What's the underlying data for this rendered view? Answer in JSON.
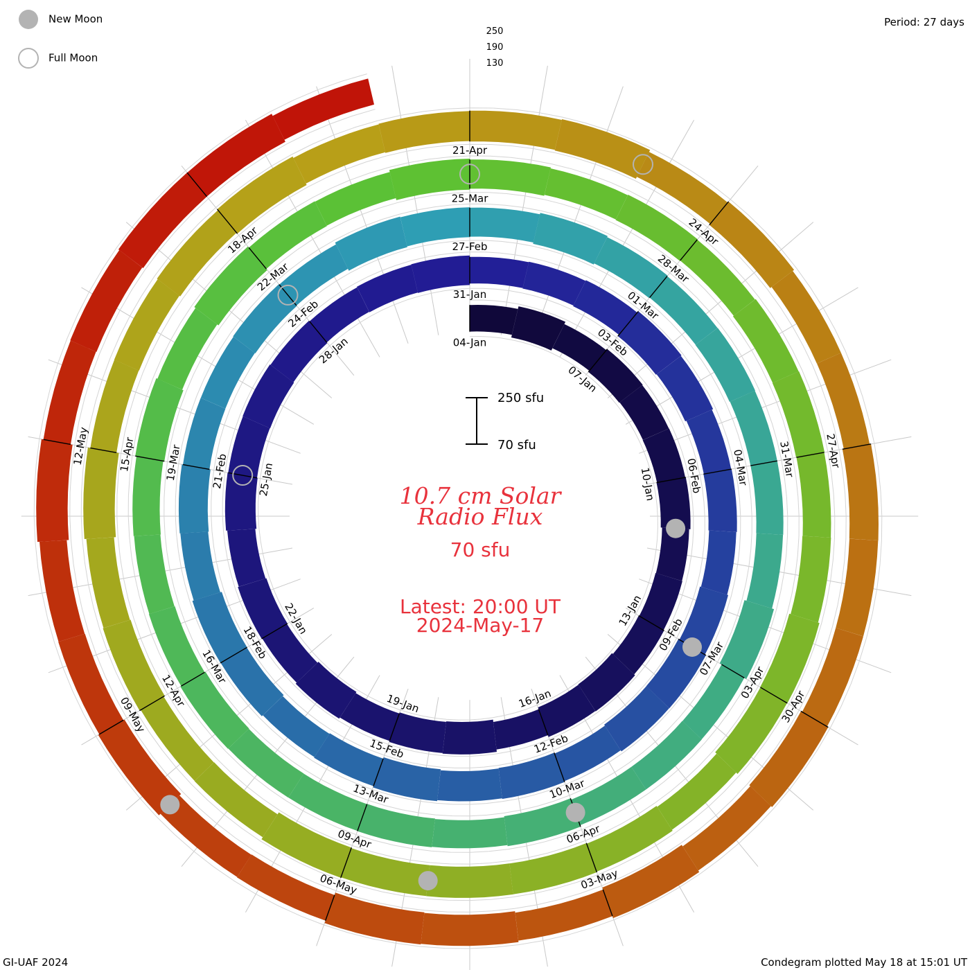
{
  "legend": {
    "new_moon_label": "New Moon",
    "full_moon_label": "Full Moon",
    "new_moon_color": "#b3b3b3",
    "full_moon_stroke": "#b3b3b3"
  },
  "header": {
    "period": "Period: 27 days",
    "scale_ticks": [
      "250",
      "190",
      "130"
    ]
  },
  "center": {
    "title_line1": "10.7 cm Solar",
    "title_line2": "Radio Flux",
    "current_value": "70 sfu",
    "latest_line1": "Latest: 20:00 UT",
    "latest_line2": "2024-May-17",
    "scale_top": "250 sfu",
    "scale_bottom": "70 sfu"
  },
  "footer": {
    "left": "GI-UAF 2024",
    "right": "Condegram plotted May 18 at 15:01 UT"
  },
  "chart_data": {
    "type": "condegram",
    "period_days": 27,
    "rotation_colors": [
      "#10083a",
      "#221c96",
      "#2e9eb4",
      "#5cc234",
      "#b8a018",
      "#c01408"
    ],
    "rotations": [
      {
        "labels": [
          {
            "text": "04-Jan",
            "angle": 0
          },
          {
            "text": "07-Jan",
            "angle": 40
          },
          {
            "text": "10-Jan",
            "angle": 80
          },
          {
            "text": "13-Jan",
            "angle": 120
          },
          {
            "text": "16-Jan",
            "angle": 160
          },
          {
            "text": "19-Jan",
            "angle": 200
          },
          {
            "text": "22-Jan",
            "angle": 240
          },
          {
            "text": "25-Jan",
            "angle": 280
          },
          {
            "text": "28-Jan",
            "angle": 320
          }
        ]
      },
      {
        "labels": [
          {
            "text": "31-Jan",
            "angle": 0
          },
          {
            "text": "03-Feb",
            "angle": 40
          },
          {
            "text": "06-Feb",
            "angle": 80
          },
          {
            "text": "09-Feb",
            "angle": 120
          },
          {
            "text": "12-Feb",
            "angle": 160
          },
          {
            "text": "15-Feb",
            "angle": 200
          },
          {
            "text": "18-Feb",
            "angle": 240
          },
          {
            "text": "21-Feb",
            "angle": 280
          },
          {
            "text": "24-Feb",
            "angle": 320
          }
        ]
      },
      {
        "labels": [
          {
            "text": "27-Feb",
            "angle": 0
          },
          {
            "text": "01-Mar",
            "angle": 40
          },
          {
            "text": "04-Mar",
            "angle": 80
          },
          {
            "text": "07-Mar",
            "angle": 120
          },
          {
            "text": "10-Mar",
            "angle": 160
          },
          {
            "text": "13-Mar",
            "angle": 200
          },
          {
            "text": "16-Mar",
            "angle": 240
          },
          {
            "text": "19-Mar",
            "angle": 280
          },
          {
            "text": "22-Mar",
            "angle": 320
          }
        ]
      },
      {
        "labels": [
          {
            "text": "25-Mar",
            "angle": 0
          },
          {
            "text": "28-Mar",
            "angle": 40
          },
          {
            "text": "31-Mar",
            "angle": 80
          },
          {
            "text": "03-Apr",
            "angle": 120
          },
          {
            "text": "06-Apr",
            "angle": 160
          },
          {
            "text": "09-Apr",
            "angle": 200
          },
          {
            "text": "12-Apr",
            "angle": 240
          },
          {
            "text": "15-Apr",
            "angle": 280
          },
          {
            "text": "18-Apr",
            "angle": 320
          }
        ]
      },
      {
        "labels": [
          {
            "text": "21-Apr",
            "angle": 0
          },
          {
            "text": "24-Apr",
            "angle": 40
          },
          {
            "text": "27-Apr",
            "angle": 80
          },
          {
            "text": "30-Apr",
            "angle": 120
          },
          {
            "text": "03-May",
            "angle": 160
          },
          {
            "text": "06-May",
            "angle": 200
          },
          {
            "text": "09-May",
            "angle": 240
          },
          {
            "text": "12-May",
            "angle": 280
          }
        ]
      }
    ],
    "new_moons": [
      {
        "date": "11-Jan"
      },
      {
        "date": "09-Feb"
      },
      {
        "date": "10-Mar"
      },
      {
        "date": "08-Apr"
      },
      {
        "date": "08-May"
      }
    ],
    "full_moons": [
      {
        "date": "25-Jan"
      },
      {
        "date": "24-Feb"
      },
      {
        "date": "25-Mar"
      },
      {
        "date": "23-Apr"
      }
    ]
  }
}
